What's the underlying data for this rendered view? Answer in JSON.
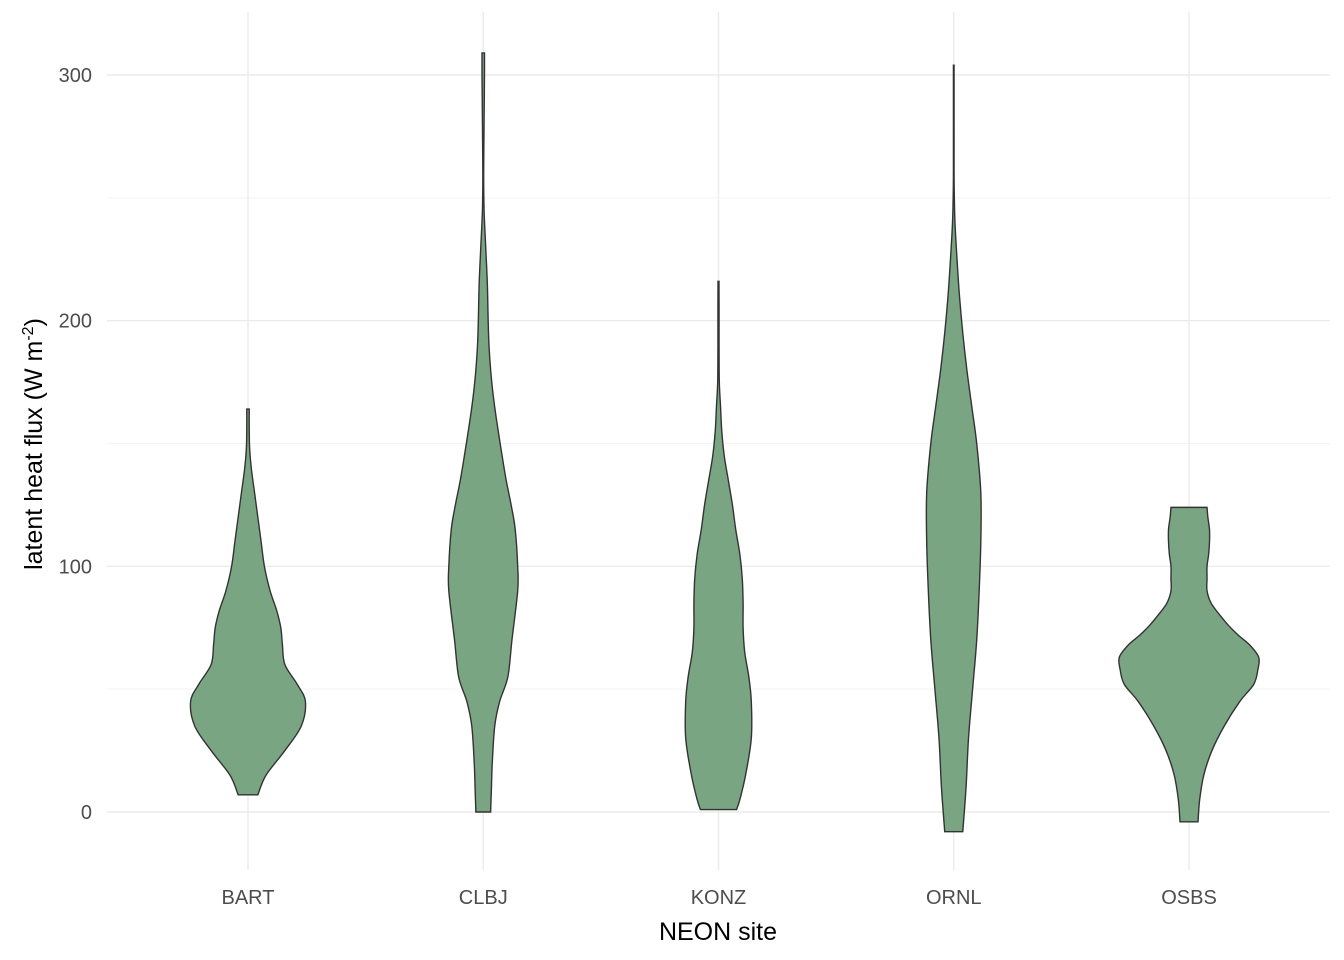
{
  "chart_data": {
    "type": "violin",
    "xlabel": "NEON site",
    "ylabel_main": "latent heat flux (W m",
    "ylabel_sup": "-2",
    "ylabel_end": ")",
    "categories": [
      "BART",
      "CLBJ",
      "KONZ",
      "ORNL",
      "OSBS"
    ],
    "ylim": [
      -22,
      322
    ],
    "yticks": [
      0,
      100,
      200,
      300
    ],
    "ytick_labels": [
      "0",
      "100",
      "200",
      "300"
    ],
    "grid": true,
    "fill_color": "#79a582",
    "violins": [
      {
        "name": "BART",
        "ymin": 7,
        "ymax": 164,
        "profile": [
          [
            7,
            0.12
          ],
          [
            15,
            0.22
          ],
          [
            25,
            0.45
          ],
          [
            35,
            0.65
          ],
          [
            45,
            0.7
          ],
          [
            52,
            0.6
          ],
          [
            60,
            0.45
          ],
          [
            68,
            0.42
          ],
          [
            75,
            0.4
          ],
          [
            82,
            0.35
          ],
          [
            90,
            0.27
          ],
          [
            100,
            0.2
          ],
          [
            110,
            0.16
          ],
          [
            120,
            0.12
          ],
          [
            130,
            0.08
          ],
          [
            140,
            0.04
          ],
          [
            148,
            0.02
          ],
          [
            156,
            0.015
          ],
          [
            164,
            0.015
          ]
        ]
      },
      {
        "name": "CLBJ",
        "ymin": 0,
        "ymax": 309,
        "profile": [
          [
            0,
            0.09
          ],
          [
            10,
            0.1
          ],
          [
            20,
            0.11
          ],
          [
            35,
            0.14
          ],
          [
            45,
            0.2
          ],
          [
            55,
            0.3
          ],
          [
            70,
            0.35
          ],
          [
            90,
            0.42
          ],
          [
            100,
            0.42
          ],
          [
            115,
            0.39
          ],
          [
            125,
            0.34
          ],
          [
            135,
            0.28
          ],
          [
            145,
            0.23
          ],
          [
            160,
            0.16
          ],
          [
            170,
            0.12
          ],
          [
            180,
            0.09
          ],
          [
            190,
            0.07
          ],
          [
            200,
            0.06
          ],
          [
            215,
            0.05
          ],
          [
            230,
            0.03
          ],
          [
            245,
            0.01
          ],
          [
            260,
            0.005
          ],
          [
            280,
            0.01
          ],
          [
            300,
            0.015
          ],
          [
            309,
            0.015
          ]
        ]
      },
      {
        "name": "KONZ",
        "ymin": 1,
        "ymax": 216,
        "profile": [
          [
            1,
            0.22
          ],
          [
            5,
            0.26
          ],
          [
            15,
            0.33
          ],
          [
            30,
            0.4
          ],
          [
            45,
            0.4
          ],
          [
            55,
            0.37
          ],
          [
            65,
            0.32
          ],
          [
            75,
            0.3
          ],
          [
            85,
            0.3
          ],
          [
            95,
            0.29
          ],
          [
            105,
            0.26
          ],
          [
            115,
            0.21
          ],
          [
            125,
            0.17
          ],
          [
            135,
            0.12
          ],
          [
            145,
            0.07
          ],
          [
            155,
            0.04
          ],
          [
            165,
            0.025
          ],
          [
            175,
            0.01
          ],
          [
            190,
            0.007
          ],
          [
            205,
            0.007
          ],
          [
            216,
            0.006
          ]
        ]
      },
      {
        "name": "ORNL",
        "ymin": -8,
        "ymax": 304,
        "profile": [
          [
            -8,
            0.11
          ],
          [
            10,
            0.15
          ],
          [
            30,
            0.18
          ],
          [
            50,
            0.23
          ],
          [
            70,
            0.28
          ],
          [
            90,
            0.31
          ],
          [
            110,
            0.33
          ],
          [
            130,
            0.33
          ],
          [
            150,
            0.28
          ],
          [
            165,
            0.22
          ],
          [
            180,
            0.16
          ],
          [
            195,
            0.11
          ],
          [
            210,
            0.07
          ],
          [
            225,
            0.04
          ],
          [
            240,
            0.015
          ],
          [
            255,
            0.005
          ],
          [
            270,
            0.004
          ],
          [
            290,
            0.004
          ],
          [
            304,
            0.004
          ]
        ]
      },
      {
        "name": "OSBS",
        "ymin": -4,
        "ymax": 124,
        "profile": [
          [
            -4,
            0.11
          ],
          [
            5,
            0.13
          ],
          [
            15,
            0.18
          ],
          [
            25,
            0.28
          ],
          [
            35,
            0.43
          ],
          [
            45,
            0.62
          ],
          [
            52,
            0.79
          ],
          [
            58,
            0.84
          ],
          [
            63,
            0.85
          ],
          [
            68,
            0.74
          ],
          [
            72,
            0.6
          ],
          [
            76,
            0.48
          ],
          [
            80,
            0.38
          ],
          [
            85,
            0.27
          ],
          [
            90,
            0.22
          ],
          [
            95,
            0.22
          ],
          [
            100,
            0.22
          ],
          [
            105,
            0.24
          ],
          [
            110,
            0.25
          ],
          [
            115,
            0.25
          ],
          [
            120,
            0.23
          ],
          [
            124,
            0.22
          ]
        ]
      }
    ]
  }
}
